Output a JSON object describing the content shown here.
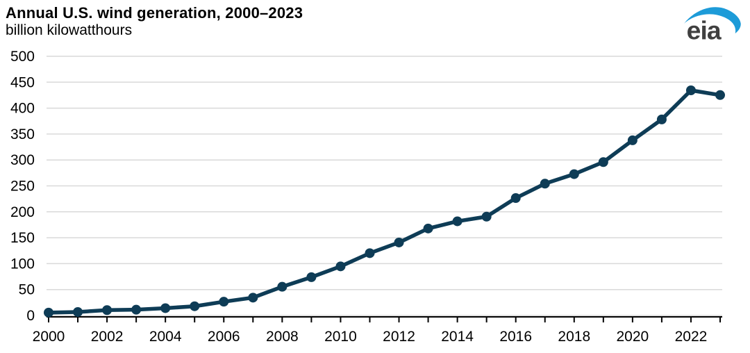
{
  "header": {
    "title": "Annual U.S. wind generation, 2000–2023",
    "subtitle": "billion kilowatthours"
  },
  "logo": {
    "text": "eia",
    "swoosh_color": "#1d9bd8",
    "text_color": "#404040"
  },
  "chart_data": {
    "type": "line",
    "title": "Annual U.S. wind generation, 2000–2023",
    "ylabel": "billion kilowatthours",
    "x": [
      2000,
      2001,
      2002,
      2003,
      2004,
      2005,
      2006,
      2007,
      2008,
      2009,
      2010,
      2011,
      2012,
      2013,
      2014,
      2015,
      2016,
      2017,
      2018,
      2019,
      2020,
      2021,
      2022,
      2023
    ],
    "values": [
      5.6,
      6.7,
      10.4,
      11.2,
      14.1,
      17.8,
      26.6,
      34.4,
      55.4,
      73.9,
      94.7,
      120.2,
      140.8,
      167.8,
      181.7,
      190.7,
      226.5,
      254.3,
      272.7,
      295.9,
      337.9,
      378.2,
      434.3,
      425.2
    ],
    "ylim": [
      0,
      500
    ],
    "ytick_step": 50,
    "xtick_label_step": 2,
    "grid": "horizontal",
    "legend": "none",
    "colors": {
      "line": "#0e3c56",
      "marker": "#0e3c56",
      "grid": "#d9d9d9",
      "axis": "#000000",
      "tick_text": "#000000"
    },
    "marker_radius": 7,
    "line_width": 5.5
  }
}
